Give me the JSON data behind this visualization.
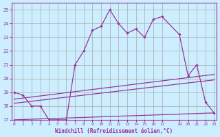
{
  "xlabel": "Windchill (Refroidissement éolien,°C)",
  "bg_color": "#cceeff",
  "grid_color": "#aaaaaa",
  "line_color": "#993399",
  "ylim": [
    17,
    25.5
  ],
  "xlim": [
    -0.3,
    23.3
  ],
  "yticks": [
    17,
    18,
    19,
    20,
    21,
    22,
    23,
    24,
    25
  ],
  "xticks": [
    0,
    1,
    2,
    3,
    4,
    5,
    6,
    7,
    8,
    9,
    10,
    11,
    12,
    13,
    14,
    15,
    16,
    17,
    19,
    20,
    21,
    22,
    23
  ],
  "line1_x": [
    0,
    1,
    2,
    3,
    4,
    5,
    6,
    7,
    8,
    9,
    10,
    11,
    12,
    13,
    14,
    15,
    16,
    17,
    19,
    20,
    21,
    22,
    23
  ],
  "line1_y": [
    19.0,
    18.8,
    18.0,
    18.0,
    17.0,
    17.0,
    17.0,
    21.0,
    22.0,
    23.5,
    23.8,
    25.0,
    24.0,
    23.3,
    23.6,
    23.0,
    24.3,
    24.5,
    23.2,
    20.2,
    21.0,
    18.3,
    17.5
  ],
  "line2_x": [
    0,
    23
  ],
  "line2_y": [
    18.5,
    20.3
  ],
  "line3_x": [
    0,
    23
  ],
  "line3_y": [
    18.2,
    19.9
  ],
  "line4_x": [
    0,
    23
  ],
  "line4_y": [
    17.0,
    17.5
  ]
}
